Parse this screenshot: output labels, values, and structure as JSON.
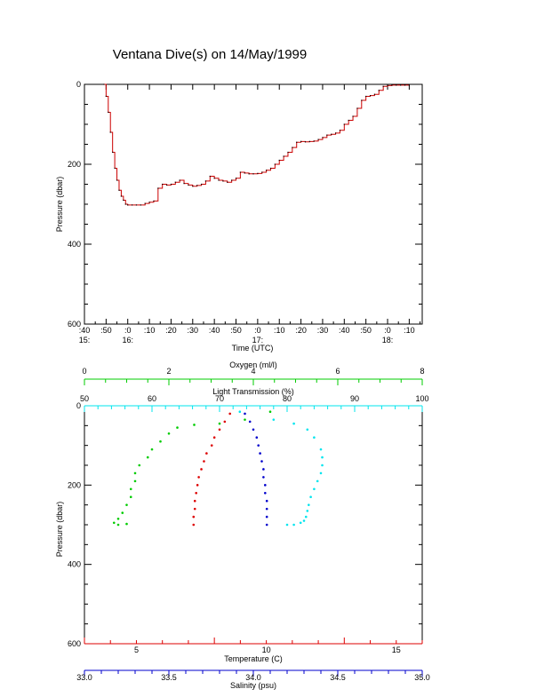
{
  "title": "Ventana Dive(s) on 14/May/1999",
  "colors": {
    "axis": "#000000",
    "pressure_trace": "#cc0000",
    "oxygen": "#00cc00",
    "transmission": "#00e5ee",
    "temperature": "#dd0000",
    "salinity": "#0000cc"
  },
  "chart_data": [
    {
      "type": "line",
      "title": "Ventana Dive(s) on 14/May/1999",
      "xlabel": "Time (UTC)",
      "ylabel": "Pressure (dbar)",
      "x_unit": "minutes after 15:40 UTC",
      "xlim": [
        0,
        156
      ],
      "ylim": [
        600,
        0
      ],
      "x_ticks": [
        {
          "top": ":40",
          "bottom": "15:"
        },
        {
          "top": ":50",
          "bottom": ""
        },
        {
          "top": ":0",
          "bottom": "16:"
        },
        {
          "top": ":10",
          "bottom": ""
        },
        {
          "top": ":20",
          "bottom": ""
        },
        {
          "top": ":30",
          "bottom": ""
        },
        {
          "top": ":40",
          "bottom": ""
        },
        {
          "top": ":50",
          "bottom": ""
        },
        {
          "top": ":0",
          "bottom": "17:"
        },
        {
          "top": ":10",
          "bottom": ""
        },
        {
          "top": ":20",
          "bottom": ""
        },
        {
          "top": ":30",
          "bottom": ""
        },
        {
          "top": ":40",
          "bottom": ""
        },
        {
          "top": ":50",
          "bottom": ""
        },
        {
          "top": ":0",
          "bottom": "18:"
        },
        {
          "top": ":10",
          "bottom": ""
        }
      ],
      "y_ticks": [
        "0",
        "200",
        "400",
        "600"
      ],
      "series": [
        {
          "x": [
            9,
            10,
            11,
            12,
            13,
            14,
            15,
            16,
            17,
            18,
            19,
            20,
            22,
            24,
            26,
            28,
            30,
            32,
            34,
            36,
            38,
            40,
            42,
            44,
            46,
            48,
            50,
            52,
            54,
            56,
            58,
            60,
            62,
            64,
            66,
            68,
            70,
            72,
            74,
            76,
            78,
            80,
            82,
            84,
            86,
            88,
            90,
            92,
            94,
            96,
            98,
            100,
            102,
            104,
            106,
            108,
            110,
            112,
            114,
            116,
            118,
            120,
            122,
            124,
            126,
            128,
            130,
            132,
            134,
            136,
            138,
            140,
            142,
            144,
            146,
            148,
            150
          ],
          "y": [
            0,
            30,
            70,
            120,
            170,
            210,
            240,
            265,
            280,
            290,
            300,
            302,
            302,
            302,
            302,
            298,
            295,
            292,
            260,
            250,
            252,
            250,
            245,
            240,
            248,
            252,
            255,
            253,
            250,
            242,
            230,
            235,
            240,
            242,
            245,
            240,
            235,
            220,
            222,
            224,
            224,
            223,
            220,
            215,
            210,
            200,
            190,
            180,
            170,
            158,
            145,
            143,
            144,
            143,
            142,
            138,
            133,
            127,
            125,
            122,
            115,
            100,
            90,
            80,
            60,
            40,
            30,
            28,
            25,
            15,
            5,
            3,
            2,
            2,
            2,
            2,
            2
          ]
        }
      ]
    },
    {
      "type": "scatter",
      "ylabel": "Pressure (dbar)",
      "ylim": [
        600,
        0
      ],
      "y_ticks": [
        "0",
        "200",
        "400",
        "600"
      ],
      "axes": {
        "oxygen": {
          "label": "Oxygen (ml/l)",
          "range": [
            0,
            8
          ],
          "ticks": [
            "0",
            "2",
            "4",
            "6",
            "8"
          ],
          "position": "top"
        },
        "transmission": {
          "label": "Light Transmission (%)",
          "range": [
            50,
            100
          ],
          "ticks": [
            "50",
            "60",
            "70",
            "80",
            "90",
            "100"
          ],
          "position": "top"
        },
        "temperature": {
          "label": "Temperature (C)",
          "range": [
            3,
            16
          ],
          "ticks": [
            "5",
            "10",
            "15"
          ],
          "position": "bottom"
        },
        "salinity": {
          "label": "Salinity (psu)",
          "range": [
            33.0,
            35.0
          ],
          "ticks": [
            "33.0",
            "33.5",
            "34.0",
            "34.5",
            "35.0"
          ],
          "position": "bottom"
        }
      },
      "series": [
        {
          "axis": "oxygen",
          "x": [
            4.4,
            3.8,
            3.2,
            2.6,
            2.2,
            2.0,
            1.8,
            1.6,
            1.5,
            1.3,
            1.2,
            1.2,
            1.1,
            1.1,
            1.0,
            0.9,
            0.8,
            0.7,
            0.8,
            1.0
          ],
          "y": [
            15,
            35,
            45,
            48,
            55,
            70,
            90,
            110,
            130,
            150,
            170,
            190,
            210,
            230,
            250,
            270,
            285,
            295,
            300,
            298
          ]
        },
        {
          "axis": "transmission",
          "x": [
            73,
            78,
            81,
            83,
            84,
            85,
            85.2,
            85.2,
            85,
            84.5,
            84,
            83.5,
            83.2,
            83,
            82.8,
            82.5,
            82,
            81,
            80
          ],
          "y": [
            15,
            35,
            45,
            60,
            80,
            110,
            130,
            150,
            170,
            190,
            210,
            230,
            250,
            265,
            280,
            290,
            295,
            300,
            300
          ]
        },
        {
          "axis": "temperature",
          "x": [
            8.6,
            8.4,
            8.2,
            8.0,
            7.9,
            7.7,
            7.6,
            7.5,
            7.4,
            7.35,
            7.3,
            7.25,
            7.25,
            7.2,
            7.2
          ],
          "y": [
            20,
            40,
            60,
            80,
            100,
            120,
            140,
            160,
            180,
            200,
            220,
            240,
            260,
            280,
            300
          ]
        },
        {
          "axis": "salinity",
          "x": [
            33.95,
            33.98,
            34.0,
            34.02,
            34.03,
            34.04,
            34.05,
            34.06,
            34.06,
            34.07,
            34.07,
            34.08,
            34.08,
            34.08,
            34.08
          ],
          "y": [
            20,
            40,
            60,
            80,
            100,
            120,
            140,
            160,
            180,
            200,
            220,
            240,
            260,
            280,
            300
          ]
        }
      ]
    }
  ]
}
